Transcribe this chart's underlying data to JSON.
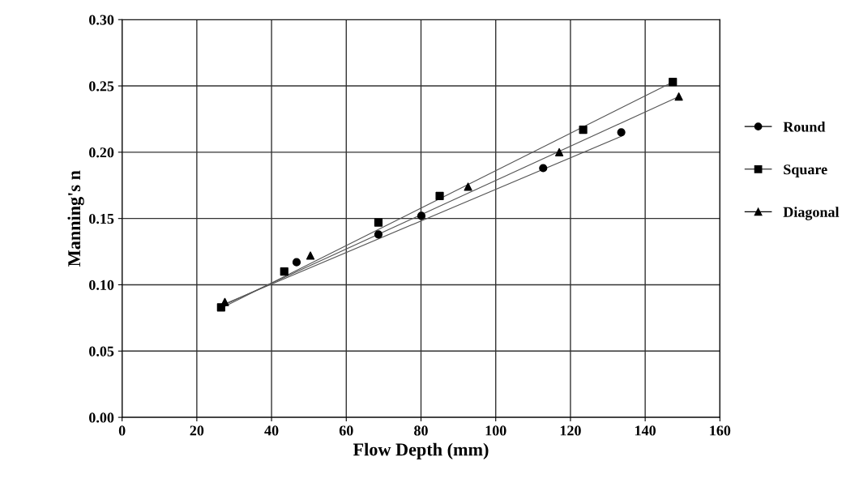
{
  "chart_data": {
    "type": "scatter",
    "xlabel": "Flow Depth (mm)",
    "ylabel": "Manning's n",
    "xlim": [
      0,
      160
    ],
    "xticks": [
      0,
      20,
      40,
      60,
      80,
      100,
      120,
      140,
      160
    ],
    "ylim": [
      0,
      0.3
    ],
    "yticks": [
      {
        "value": 0,
        "label": "0.00"
      },
      {
        "value": 0.05,
        "label": "0.05"
      },
      {
        "value": 0.1,
        "label": "0.10"
      },
      {
        "value": 0.15,
        "label": "0.15"
      },
      {
        "value": 0.2,
        "label": "0.20"
      },
      {
        "value": 0.25,
        "label": "0.25"
      },
      {
        "value": 0.3,
        "label": "0.30"
      }
    ],
    "grid": true,
    "legend": "right",
    "series": [
      {
        "name": "Round",
        "color": "#000000",
        "marker": "circle",
        "x": [
          46.7,
          68.6,
          80.1,
          112.7,
          133.6
        ],
        "values": [
          0.117,
          0.138,
          0.152,
          0.188,
          0.215
        ]
      },
      {
        "name": "Square",
        "color": "#000000",
        "marker": "square",
        "x": [
          26.5,
          43.4,
          68.6,
          85,
          123.4,
          147.4
        ],
        "values": [
          0.083,
          0.11,
          0.147,
          0.167,
          0.217,
          0.253
        ]
      },
      {
        "name": "Diagonal",
        "color": "#000000",
        "marker": "triangle",
        "x": [
          27.5,
          50.4,
          92.6,
          117,
          149
        ],
        "values": [
          0.087,
          0.122,
          0.174,
          0.2,
          0.242
        ]
      },
      {
        "type": "line",
        "color": "#555555",
        "marker": "none",
        "x": [
          27,
          133.6
        ],
        "values": [
          0.085,
          0.212
        ]
      },
      {
        "type": "line",
        "color": "#555555",
        "marker": "none",
        "x": [
          27,
          147.4
        ],
        "values": [
          0.083,
          0.253
        ]
      },
      {
        "type": "line",
        "color": "#555555",
        "marker": "none",
        "x": [
          27.5,
          149
        ],
        "values": [
          0.085,
          0.242
        ]
      }
    ]
  }
}
